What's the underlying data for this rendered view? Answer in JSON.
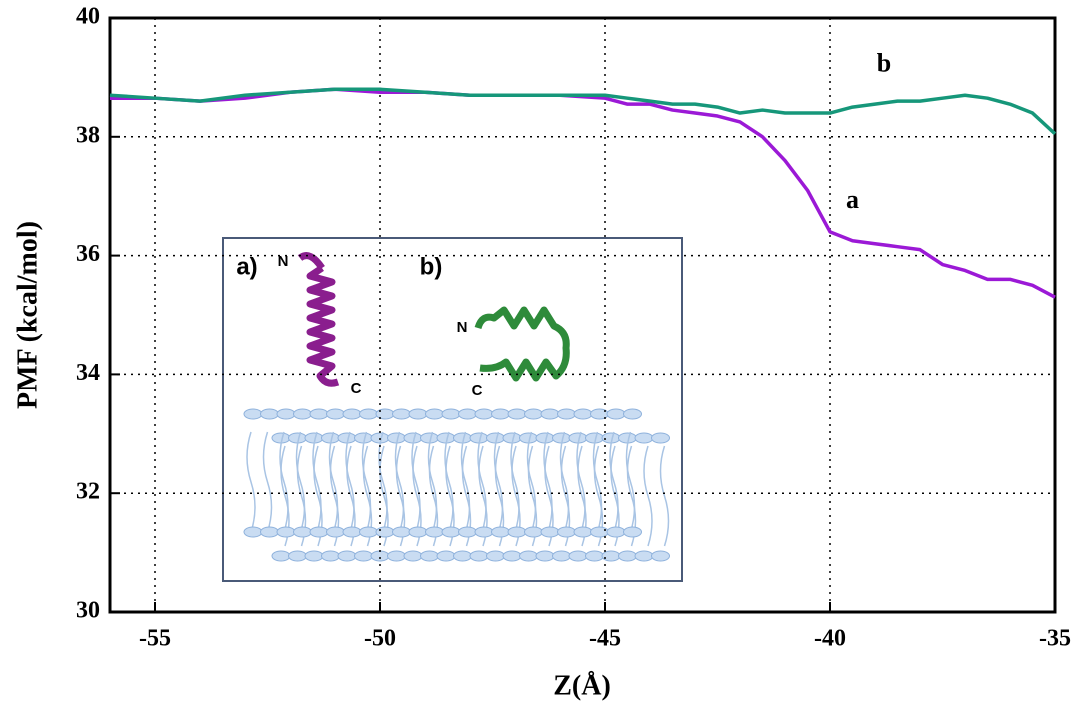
{
  "chart_data": {
    "type": "line",
    "x_label": "Z(Å)",
    "y_label": "PMF (kcal/mol)",
    "x": [
      -56,
      -55,
      -54,
      -53,
      -52,
      -51,
      -50,
      -49,
      -48,
      -47,
      -46,
      -45,
      -44.5,
      -44,
      -43.5,
      -43,
      -42.5,
      -42,
      -41.5,
      -41,
      -40.5,
      -40,
      -39.5,
      -39,
      -38.5,
      -38,
      -37.5,
      -37,
      -36.5,
      -36,
      -35.5,
      -35
    ],
    "series": [
      {
        "name": "a",
        "color": "#9b19d6",
        "values": [
          38.65,
          38.65,
          38.6,
          38.65,
          38.75,
          38.8,
          38.75,
          38.75,
          38.7,
          38.7,
          38.7,
          38.65,
          38.55,
          38.55,
          38.45,
          38.4,
          38.35,
          38.25,
          38.0,
          37.6,
          37.1,
          36.4,
          36.25,
          36.2,
          36.15,
          36.1,
          35.85,
          35.75,
          35.6,
          35.6,
          35.5,
          35.3
        ]
      },
      {
        "name": "b",
        "color": "#16977a",
        "values": [
          38.7,
          38.65,
          38.6,
          38.7,
          38.75,
          38.8,
          38.8,
          38.75,
          38.7,
          38.7,
          38.7,
          38.7,
          38.65,
          38.6,
          38.55,
          38.55,
          38.5,
          38.4,
          38.45,
          38.4,
          38.4,
          38.4,
          38.5,
          38.55,
          38.6,
          38.6,
          38.65,
          38.7,
          38.65,
          38.55,
          38.4,
          38.05
        ]
      }
    ],
    "xlim": [
      -56,
      -35
    ],
    "xticks": [
      -55,
      -50,
      -45,
      -40,
      -35
    ],
    "ylim": [
      30,
      40
    ],
    "yticks": [
      30,
      32,
      34,
      36,
      38,
      40
    ],
    "grid": true,
    "inset_labels": [
      "a)",
      "b)",
      "N",
      "C",
      "N",
      "C"
    ]
  }
}
